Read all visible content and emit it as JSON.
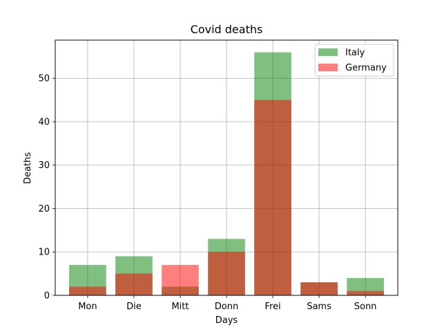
{
  "chart_data": {
    "type": "bar",
    "title": "Covid deaths",
    "xlabel": "Days",
    "ylabel": "Deaths",
    "categories": [
      "Mon",
      "Die",
      "Mitt",
      "Donn",
      "Frei",
      "Sams",
      "Sonn"
    ],
    "series": [
      {
        "name": "Italy",
        "values": [
          7,
          9,
          2,
          13,
          56,
          3,
          4
        ],
        "color": "#008000",
        "alpha": 0.5
      },
      {
        "name": "Germany",
        "values": [
          2,
          5,
          7,
          10,
          45,
          3,
          1
        ],
        "color": "#ff0000",
        "alpha": 0.5
      }
    ],
    "ylim": [
      0,
      58.8
    ],
    "yticks": [
      0,
      10,
      20,
      30,
      40,
      50
    ],
    "grid": true,
    "legend": "top-right"
  }
}
